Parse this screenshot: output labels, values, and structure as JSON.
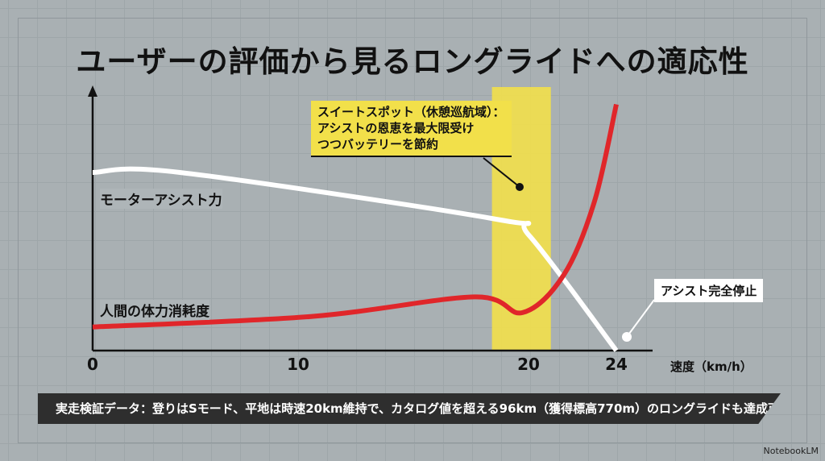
{
  "title": "ユーザーの評価から見るロングライドへの適応性",
  "chart_data": {
    "type": "line",
    "title": "ユーザーの評価から見るロングライドへの適応性",
    "xlabel": "速度（km/h）",
    "ylabel": "",
    "xlim": [
      0,
      24
    ],
    "ylim": [
      0,
      100
    ],
    "x_ticks": [
      "0",
      "10",
      "20",
      "24"
    ],
    "x_tick_values": [
      0,
      10,
      20,
      24
    ],
    "grid": true,
    "highlight_range": [
      18.3,
      21
    ],
    "series": [
      {
        "name": "モーターアシスト力",
        "color": "#ffffff",
        "points": [
          [
            0,
            68
          ],
          [
            4,
            68
          ],
          [
            18.6,
            50
          ],
          [
            20,
            44
          ],
          [
            24,
            0
          ]
        ]
      },
      {
        "name": "人間の体力消耗度",
        "color": "#e0262a",
        "points": [
          [
            0,
            9
          ],
          [
            10,
            13
          ],
          [
            17.5,
            20.5
          ],
          [
            19.7,
            14.5
          ],
          [
            21.6,
            29
          ],
          [
            23,
            57
          ],
          [
            24,
            94
          ]
        ]
      }
    ],
    "annotations": [
      "スイートスポット（休憩巡航域）：",
      "アシストの恩恵を最大限受け",
      "つつバッテリーを節約",
      "アシスト完全停止"
    ]
  },
  "footer": "実走検証データ：登りはSモード、平地は時速20km維持で、カタログ値を超える96km（獲得標高770m）のロングライドも達成可能。",
  "brand": "NotebookLM"
}
